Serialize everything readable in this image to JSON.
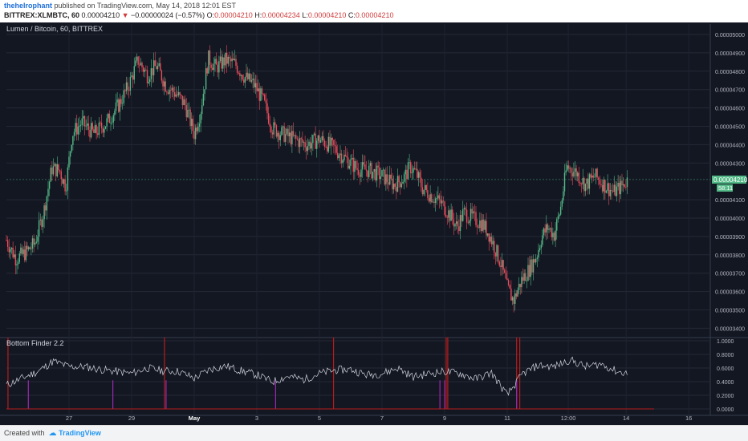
{
  "header": {
    "username": "thehelrophant",
    "published_text": "published on TradingView.com, May 14, 2018 12:01 EST",
    "symbol": "BITTREX:XLMBTC, 60",
    "last_price": "0.00004210",
    "change": "−0.00000024 (−0.57%)",
    "open_label": "O:",
    "open": "0.00004210",
    "high_label": "H:",
    "high": "0.00004234",
    "low_label": "L:",
    "low": "0.00004210",
    "close_label": "C:",
    "close": "0.00004210"
  },
  "chart_title": "Lumen / Bitcoin, 60, BITTREX",
  "indicator_title": "Bottom Finder 2.2",
  "current_price_label": "0.00004210",
  "countdown_label": "58:11",
  "footer": {
    "created_with": "Created with",
    "brand": "TradingView"
  },
  "colors": {
    "up": "#53b987",
    "down": "#eb4d5c",
    "background": "#131722",
    "indicator_line": "#d1d4dc",
    "spike_red": "#b71c1c",
    "spike_purple": "#9c27b0"
  },
  "chart_data": [
    {
      "type": "candlestick",
      "title": "Lumen / Bitcoin, 60, BITTREX",
      "y_ticks": [
        "0.00005000",
        "0.00004900",
        "0.00004800",
        "0.00004700",
        "0.00004600",
        "0.00004500",
        "0.00004400",
        "0.00004300",
        "0.00004100",
        "0.00004000",
        "0.00003900",
        "0.00003800",
        "0.00003700",
        "0.00003600",
        "0.00003500",
        "0.00003400"
      ],
      "ylim": [
        3.35e-05,
        5.05e-05
      ],
      "x_ticks": [
        "27",
        "29",
        "May",
        "3",
        "5",
        "7",
        "9",
        "11",
        "12:00",
        "14",
        "16"
      ],
      "grid": true,
      "close_path": [
        {
          "d": 25.0,
          "c": 3.88e-05
        },
        {
          "d": 25.3,
          "c": 3.78e-05
        },
        {
          "d": 25.6,
          "c": 3.81e-05
        },
        {
          "d": 25.9,
          "c": 3.86e-05
        },
        {
          "d": 26.2,
          "c": 4.04e-05
        },
        {
          "d": 26.45,
          "c": 4.27e-05
        },
        {
          "d": 26.7,
          "c": 4.26e-05
        },
        {
          "d": 26.9,
          "c": 4.17e-05
        },
        {
          "d": 27.1,
          "c": 4.46e-05
        },
        {
          "d": 27.4,
          "c": 4.52e-05
        },
        {
          "d": 27.8,
          "c": 4.46e-05
        },
        {
          "d": 28.2,
          "c": 4.52e-05
        },
        {
          "d": 28.6,
          "c": 4.62e-05
        },
        {
          "d": 28.9,
          "c": 4.72e-05
        },
        {
          "d": 29.2,
          "c": 4.86e-05
        },
        {
          "d": 29.5,
          "c": 4.78e-05
        },
        {
          "d": 29.8,
          "c": 4.83e-05
        },
        {
          "d": 30.1,
          "c": 4.72e-05
        },
        {
          "d": 30.4,
          "c": 4.68e-05
        },
        {
          "d": 30.7,
          "c": 4.62e-05
        },
        {
          "d": 31.0,
          "c": 4.46e-05
        },
        {
          "d": 31.2,
          "c": 4.58e-05
        },
        {
          "d": 31.45,
          "c": 4.87e-05
        },
        {
          "d": 31.7,
          "c": 4.82e-05
        },
        {
          "d": 32.0,
          "c": 4.86e-05
        },
        {
          "d": 32.3,
          "c": 4.84e-05
        },
        {
          "d": 32.6,
          "c": 4.77e-05
        },
        {
          "d": 32.9,
          "c": 4.73e-05
        },
        {
          "d": 33.2,
          "c": 4.64e-05
        },
        {
          "d": 33.5,
          "c": 4.49e-05
        },
        {
          "d": 33.8,
          "c": 4.46e-05
        },
        {
          "d": 34.2,
          "c": 4.43e-05
        },
        {
          "d": 34.6,
          "c": 4.4e-05
        },
        {
          "d": 35.0,
          "c": 4.43e-05
        },
        {
          "d": 35.4,
          "c": 4.39e-05
        },
        {
          "d": 35.8,
          "c": 4.33e-05
        },
        {
          "d": 36.2,
          "c": 4.27e-05
        },
        {
          "d": 36.6,
          "c": 4.26e-05
        },
        {
          "d": 37.0,
          "c": 4.23e-05
        },
        {
          "d": 37.4,
          "c": 4.18e-05
        },
        {
          "d": 37.7,
          "c": 4.22e-05
        },
        {
          "d": 37.9,
          "c": 4.28e-05
        },
        {
          "d": 38.1,
          "c": 4.24e-05
        },
        {
          "d": 38.3,
          "c": 4.16e-05
        },
        {
          "d": 38.6,
          "c": 4.12e-05
        },
        {
          "d": 38.9,
          "c": 4.08e-05
        },
        {
          "d": 39.2,
          "c": 4.01e-05
        },
        {
          "d": 39.4,
          "c": 3.95e-05
        },
        {
          "d": 39.6,
          "c": 4.03e-05
        },
        {
          "d": 39.9,
          "c": 4e-05
        },
        {
          "d": 40.2,
          "c": 3.97e-05
        },
        {
          "d": 40.4,
          "c": 3.92e-05
        },
        {
          "d": 40.6,
          "c": 3.84e-05
        },
        {
          "d": 40.8,
          "c": 3.75e-05
        },
        {
          "d": 41.0,
          "c": 3.62e-05
        },
        {
          "d": 41.2,
          "c": 3.55e-05
        },
        {
          "d": 41.45,
          "c": 3.66e-05
        },
        {
          "d": 41.7,
          "c": 3.72e-05
        },
        {
          "d": 41.95,
          "c": 3.8e-05
        },
        {
          "d": 42.1,
          "c": 3.9e-05
        },
        {
          "d": 42.3,
          "c": 3.95e-05
        },
        {
          "d": 42.5,
          "c": 3.91e-05
        },
        {
          "d": 42.7,
          "c": 4.05e-05
        },
        {
          "d": 42.9,
          "c": 4.28e-05
        },
        {
          "d": 43.2,
          "c": 4.25e-05
        },
        {
          "d": 43.5,
          "c": 4.18e-05
        },
        {
          "d": 43.8,
          "c": 4.23e-05
        },
        {
          "d": 44.1,
          "c": 4.18e-05
        },
        {
          "d": 44.4,
          "c": 4.14e-05
        },
        {
          "d": 44.7,
          "c": 4.18e-05
        },
        {
          "d": 44.85,
          "c": 4.21e-05
        }
      ]
    },
    {
      "type": "line",
      "title": "Bottom Finder 2.2",
      "y_ticks": [
        "1.0000",
        "0.8000",
        "0.6000",
        "0.4000",
        "0.2000",
        "0.0000"
      ],
      "ylim": [
        0.0,
        1.0
      ],
      "series": [
        {
          "x": [
            25.0,
            25.5,
            26.0,
            26.5,
            27.0,
            27.5,
            28.0,
            28.5,
            29.0,
            29.5,
            30.0,
            30.5,
            31.0,
            31.5,
            32.0,
            32.5,
            33.0,
            33.5,
            34.0,
            34.5,
            35.0,
            35.5,
            36.0,
            36.5,
            37.0,
            37.5,
            38.0,
            38.5,
            39.0,
            39.5,
            40.0,
            40.5,
            41.0,
            41.5,
            42.0,
            42.5,
            43.0,
            43.5,
            44.0,
            44.5,
            44.85
          ],
          "y": [
            0.35,
            0.45,
            0.55,
            0.7,
            0.62,
            0.62,
            0.58,
            0.55,
            0.52,
            0.6,
            0.56,
            0.55,
            0.45,
            0.58,
            0.63,
            0.56,
            0.5,
            0.4,
            0.48,
            0.43,
            0.52,
            0.57,
            0.58,
            0.5,
            0.52,
            0.6,
            0.47,
            0.52,
            0.55,
            0.52,
            0.44,
            0.53,
            0.2,
            0.52,
            0.64,
            0.62,
            0.72,
            0.62,
            0.66,
            0.55,
            0.52
          ]
        }
      ],
      "spikes_red": [
        25.05,
        30.05,
        35.45,
        39.05,
        39.1,
        41.3,
        41.4
      ],
      "spikes_purple": [
        25.7,
        28.4,
        30.1,
        33.6,
        38.85,
        39.0,
        41.3
      ]
    }
  ]
}
